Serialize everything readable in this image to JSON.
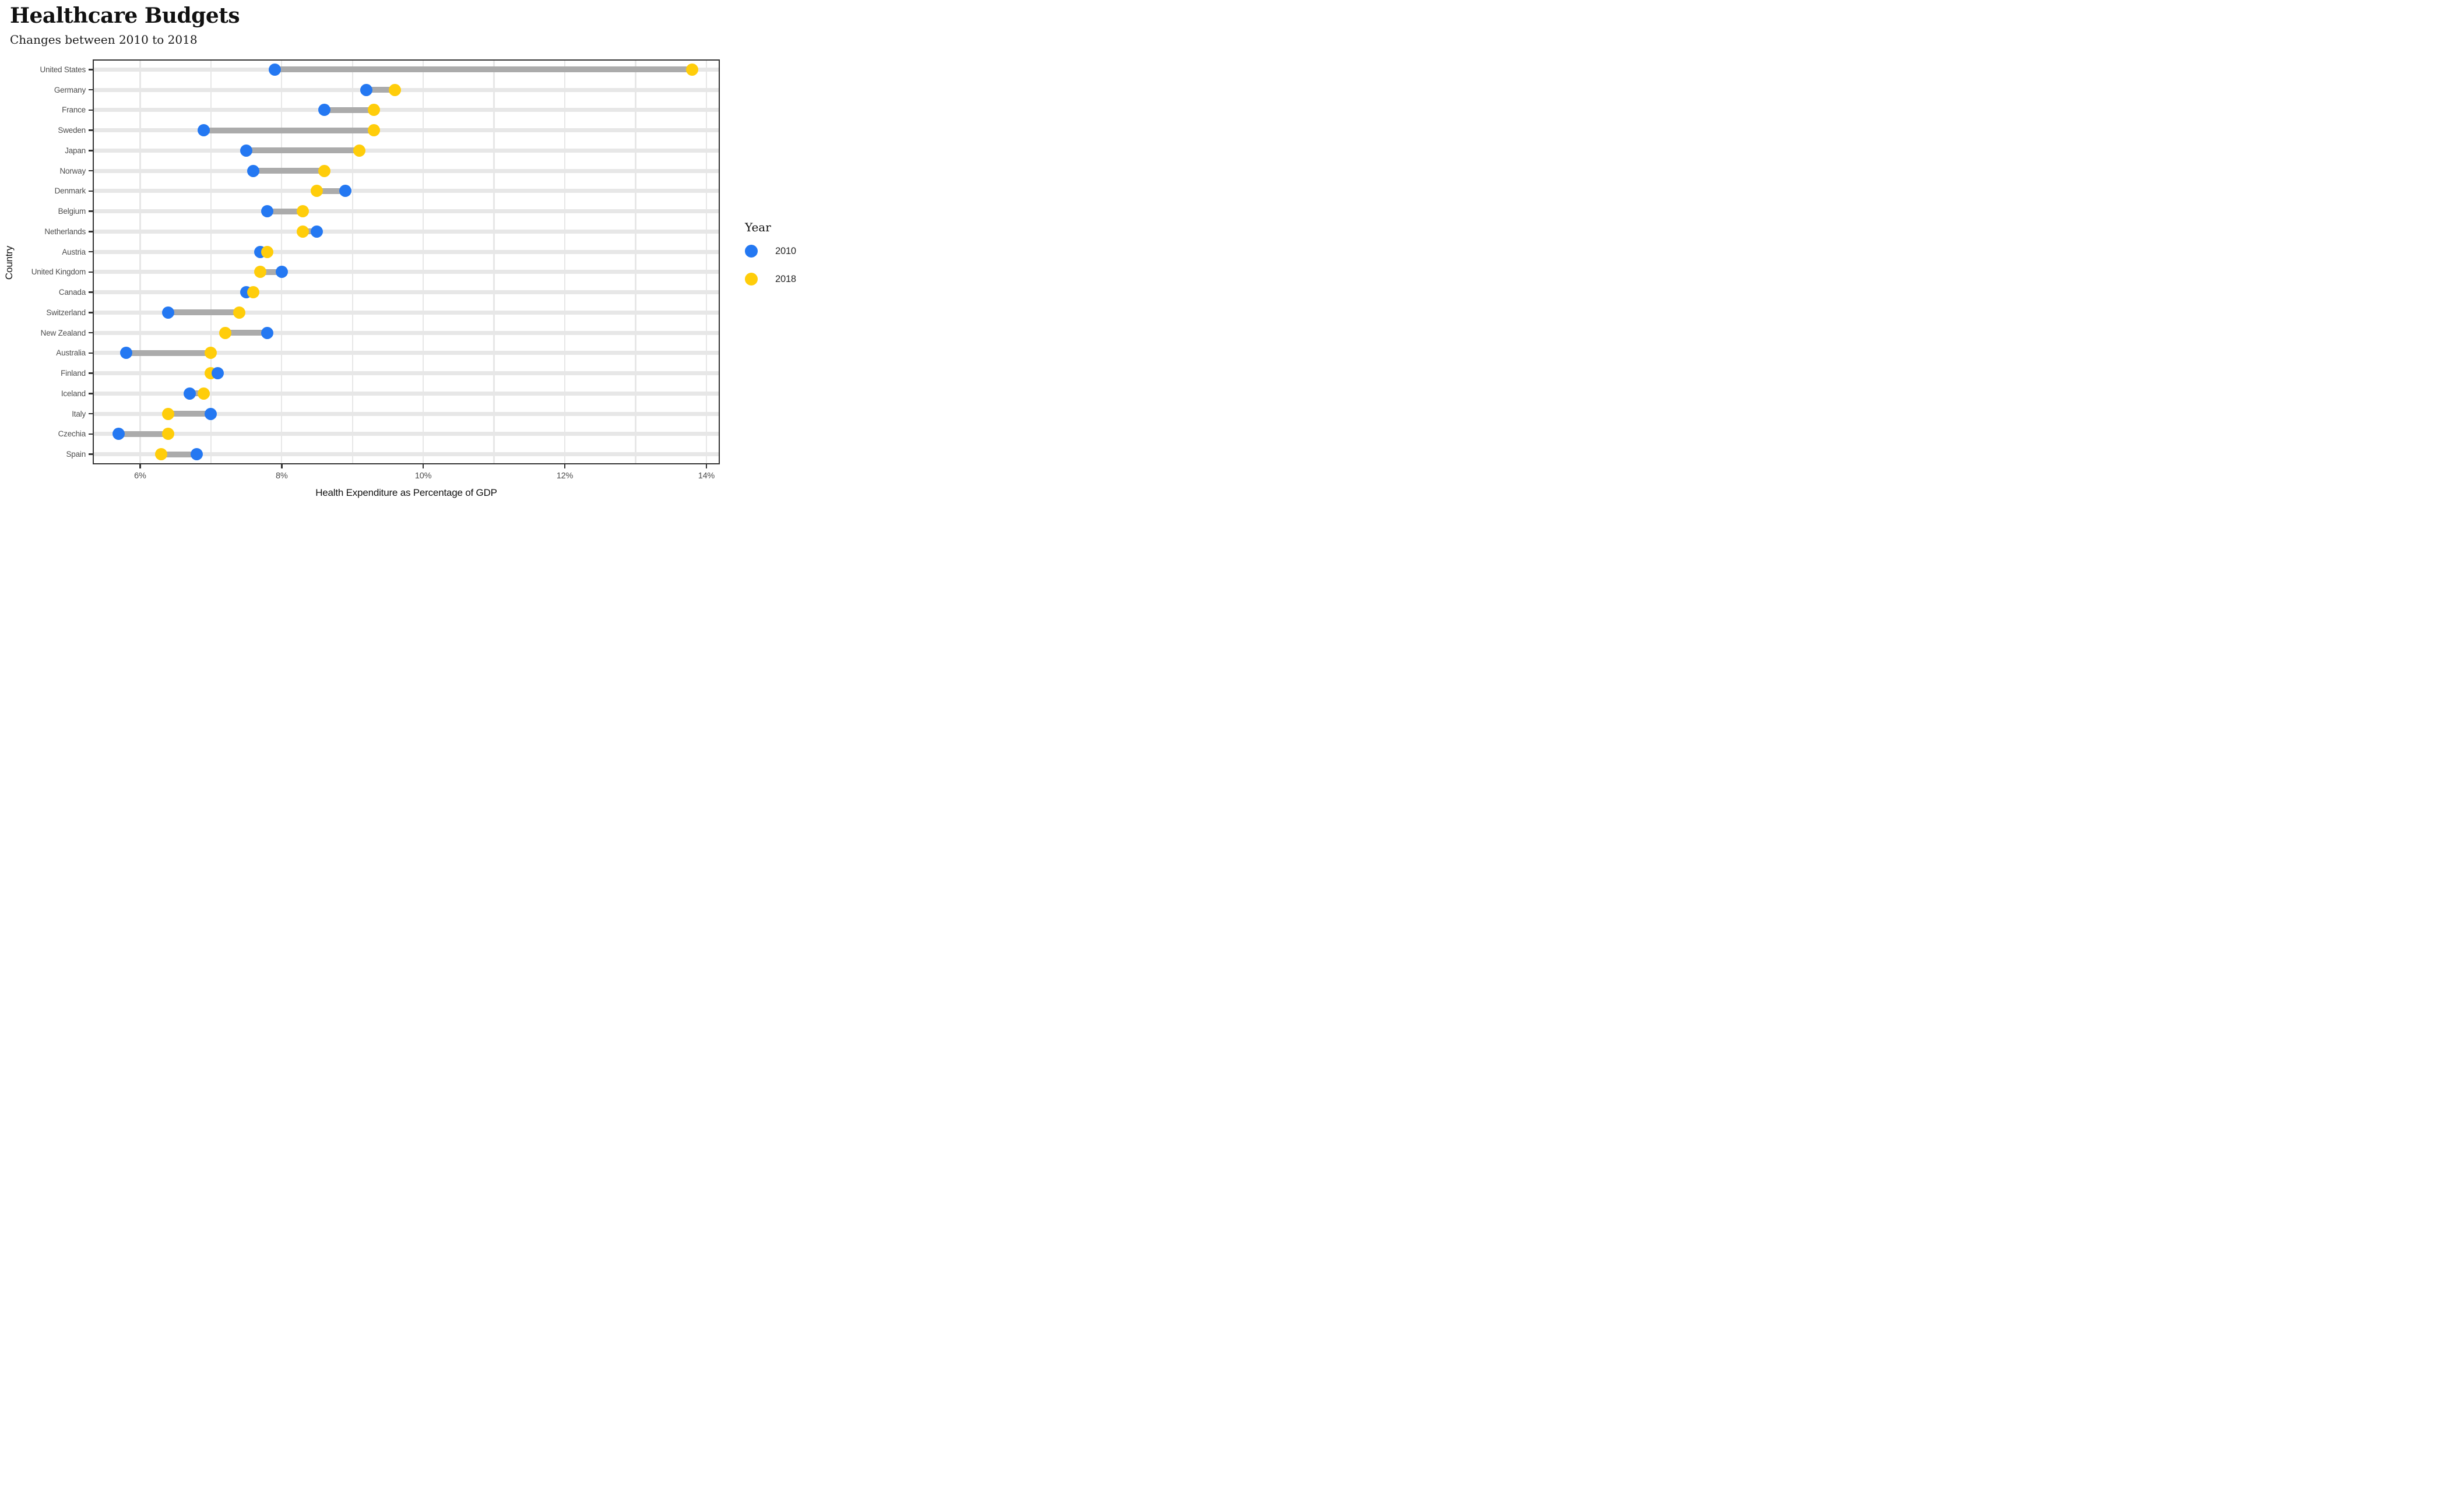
{
  "title": "Healthcare Budgets",
  "subtitle": "Changes between 2010 to 2018",
  "chart_data": {
    "type": "dumbbell",
    "title": "Healthcare Budgets",
    "subtitle": "Changes between 2010 to 2018",
    "xlabel": "Health Expenditure as Percentage of GDP",
    "ylabel": "Country",
    "x_range": [
      5.33,
      14.19
    ],
    "x_tick_values": [
      6,
      8,
      10,
      12,
      14
    ],
    "x_tick_labels": [
      "6%",
      "8%",
      "10%",
      "12%",
      "14%"
    ],
    "grid_values": [
      6,
      7,
      8,
      9,
      10,
      11,
      12,
      13,
      14
    ],
    "grid_on": true,
    "legend_position": "right",
    "series": [
      {
        "name": "2010",
        "color": "#2478F2"
      },
      {
        "name": "2018",
        "color": "#FFCD0A"
      }
    ],
    "categories": [
      "United States",
      "Germany",
      "France",
      "Sweden",
      "Japan",
      "Norway",
      "Denmark",
      "Belgium",
      "Netherlands",
      "Austria",
      "United Kingdom",
      "Canada",
      "Switzerland",
      "New Zealand",
      "Australia",
      "Finland",
      "Iceland",
      "Italy",
      "Czechia",
      "Spain"
    ],
    "values_2010": [
      7.9,
      9.2,
      8.6,
      6.9,
      7.5,
      7.6,
      8.9,
      7.8,
      8.5,
      7.7,
      8.0,
      7.5,
      6.4,
      7.8,
      5.8,
      7.1,
      6.7,
      7.0,
      5.7,
      6.8
    ],
    "values_2018": [
      13.8,
      9.6,
      9.3,
      9.3,
      9.1,
      8.6,
      8.5,
      8.3,
      8.3,
      7.8,
      7.7,
      7.6,
      7.4,
      7.2,
      7.0,
      7.0,
      6.9,
      6.4,
      6.4,
      6.3
    ],
    "legend": {
      "title": "Year",
      "items": [
        {
          "label": "2010",
          "color": "#2478F2"
        },
        {
          "label": "2018",
          "color": "#FFCD0A"
        }
      ]
    }
  },
  "colors": {
    "dot_2010": "#2478F2",
    "dot_2018": "#FFCD0A",
    "bar": "#ababab",
    "grid": "#e7e7e7",
    "panel_border": "#333333",
    "axis_text": "#4d4d4d",
    "text": "#111111",
    "background": "#ffffff"
  }
}
